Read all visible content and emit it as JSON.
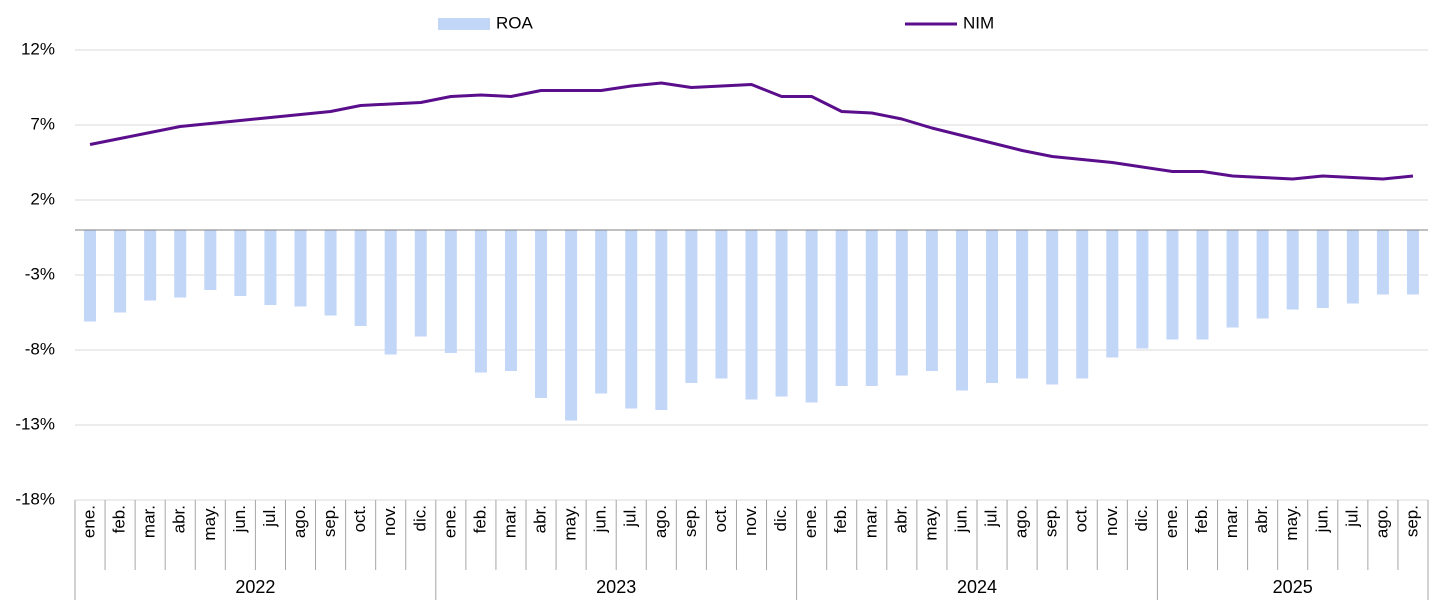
{
  "chart_data": {
    "type": "bar-line",
    "groups": [
      {
        "label": "2022",
        "categories": [
          "ene.",
          "feb.",
          "mar.",
          "abr.",
          "may.",
          "jun.",
          "jul.",
          "ago.",
          "sep.",
          "oct.",
          "nov.",
          "dic."
        ]
      },
      {
        "label": "2023",
        "categories": [
          "ene.",
          "feb.",
          "mar.",
          "abr.",
          "may.",
          "jun.",
          "jul.",
          "ago.",
          "sep.",
          "oct.",
          "nov.",
          "dic."
        ]
      },
      {
        "label": "2024",
        "categories": [
          "ene.",
          "feb.",
          "mar.",
          "abr.",
          "may.",
          "jun.",
          "jul.",
          "ago.",
          "sep.",
          "oct.",
          "nov.",
          "dic."
        ]
      },
      {
        "label": "2025",
        "categories": [
          "ene.",
          "feb.",
          "mar.",
          "abr.",
          "may.",
          "jun.",
          "jul.",
          "ago.",
          "sep."
        ]
      }
    ],
    "series": [
      {
        "name": "ROA",
        "type": "bar",
        "color": "#c2d6f8",
        "values": [
          -6.1,
          -5.5,
          -4.7,
          -4.5,
          -4.0,
          -4.4,
          -5.0,
          -5.1,
          -5.7,
          -6.4,
          -8.3,
          -7.1,
          -8.2,
          -9.5,
          -9.4,
          -11.2,
          -12.7,
          -10.9,
          -11.9,
          -12.0,
          -10.2,
          -9.9,
          -11.3,
          -11.1,
          -11.5,
          -10.4,
          -10.4,
          -9.7,
          -9.4,
          -10.7,
          -10.2,
          -9.9,
          -10.3,
          -9.9,
          -8.5,
          -7.9,
          -7.3,
          -7.3,
          -6.5,
          -5.9,
          -5.3,
          -5.2,
          -4.9,
          -4.3,
          -4.3
        ]
      },
      {
        "name": "NIM",
        "type": "line",
        "color": "#5a0e8c",
        "values": [
          5.7,
          6.1,
          6.5,
          6.9,
          7.1,
          7.3,
          7.5,
          7.7,
          7.9,
          8.3,
          8.4,
          8.5,
          8.9,
          9.0,
          8.9,
          9.3,
          9.3,
          9.3,
          9.6,
          9.8,
          9.5,
          9.6,
          9.7,
          8.9,
          8.9,
          7.9,
          7.8,
          7.4,
          6.8,
          6.3,
          5.8,
          5.3,
          4.9,
          4.7,
          4.5,
          4.2,
          3.9,
          3.9,
          3.6,
          3.5,
          3.4,
          3.6,
          3.5,
          3.4,
          3.6
        ]
      }
    ],
    "ylim": [
      -18,
      12
    ],
    "yticks": [
      {
        "value": -18,
        "label": "-18%"
      },
      {
        "value": -13,
        "label": "-13%"
      },
      {
        "value": -8,
        "label": "-8%"
      },
      {
        "value": -3,
        "label": "-3%"
      },
      {
        "value": 2,
        "label": "2%"
      },
      {
        "value": 7,
        "label": "7%"
      },
      {
        "value": 12,
        "label": "12%"
      }
    ],
    "grid": true,
    "legend": "top"
  }
}
